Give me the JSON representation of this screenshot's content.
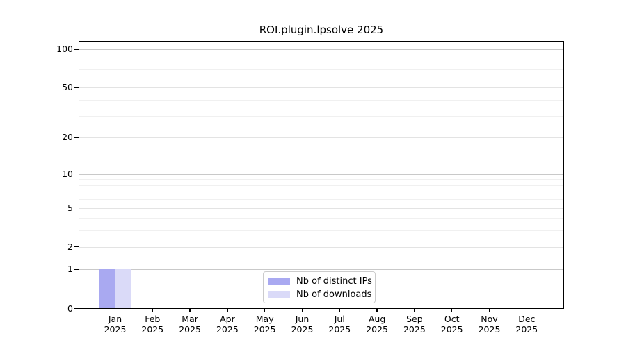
{
  "figure": {
    "background": "#ffffff",
    "axis_color": "#000000"
  },
  "chart_data": {
    "type": "bar",
    "title": "ROI.plugin.lpsolve 2025",
    "categories": [
      "Jan",
      "Feb",
      "Mar",
      "Apr",
      "May",
      "Jun",
      "Jul",
      "Aug",
      "Sep",
      "Oct",
      "Nov",
      "Dec"
    ],
    "x_year_label": "2025",
    "series": [
      {
        "name": "Nb of distinct IPs",
        "color": "#a9a9f1",
        "values": [
          1,
          0,
          0,
          0,
          0,
          0,
          0,
          0,
          0,
          0,
          0,
          0
        ]
      },
      {
        "name": "Nb of downloads",
        "color": "#dadaf8",
        "values": [
          1,
          0,
          0,
          0,
          0,
          0,
          0,
          0,
          0,
          0,
          0,
          0
        ]
      }
    ],
    "xlabel": "",
    "ylabel": "",
    "yscale": "log1p",
    "ylim": [
      0,
      114
    ],
    "yticks": [
      0,
      1,
      2,
      5,
      10,
      20,
      50,
      100
    ],
    "gridlines": {
      "major": [
        1,
        10,
        100
      ],
      "mid": [
        2,
        5,
        20,
        50
      ],
      "minor": [
        3,
        4,
        6,
        7,
        8,
        9,
        30,
        40,
        60,
        70,
        80,
        90
      ]
    },
    "grid": true,
    "legend": {
      "position": "bottom-center",
      "border_color": "#cbcbcb"
    }
  }
}
